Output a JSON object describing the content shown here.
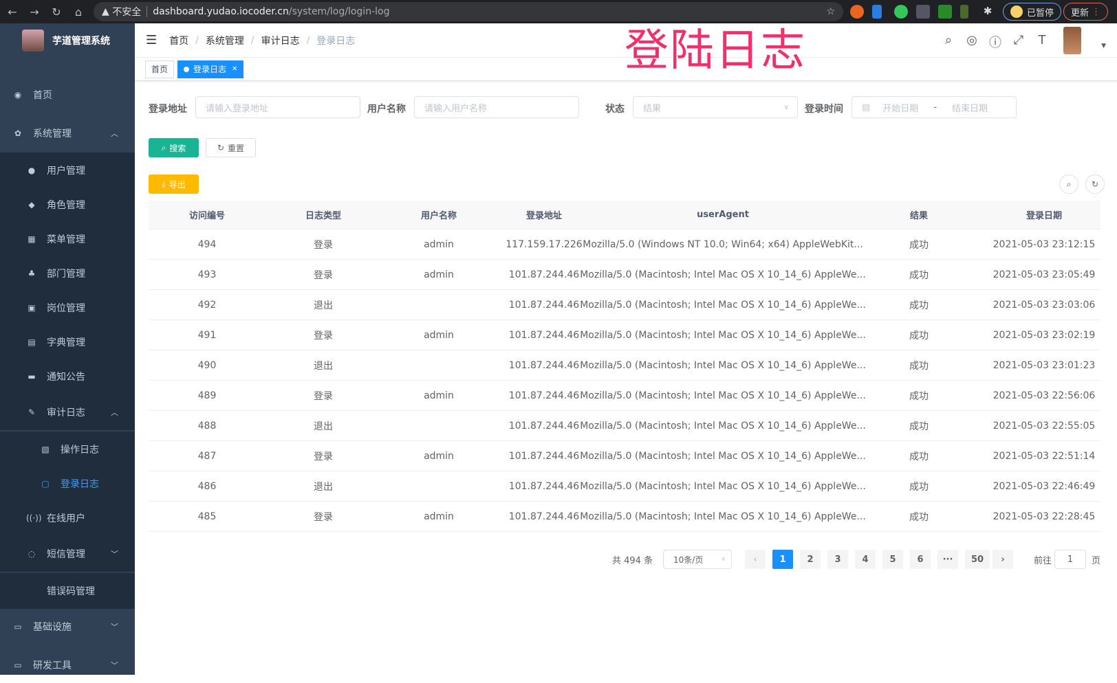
{
  "browser": {
    "security": "不安全",
    "host": "dashboard.yudao.iocoder.cn",
    "path": "/system/log/login-log",
    "paused_label": "已暂停",
    "update_label": "更新"
  },
  "overlay_title": "登陆日志",
  "sidebar": {
    "app_title": "芋道管理系统",
    "items": [
      {
        "label": "首页",
        "icon": "dashboard-icon",
        "level": 0
      },
      {
        "label": "系统管理",
        "icon": "gear-icon",
        "level": 0,
        "expanded": true
      },
      {
        "label": "用户管理",
        "icon": "user-icon",
        "level": 1
      },
      {
        "label": "角色管理",
        "icon": "peoples-icon",
        "level": 1
      },
      {
        "label": "菜单管理",
        "icon": "tree-table-icon",
        "level": 1
      },
      {
        "label": "部门管理",
        "icon": "tree-icon",
        "level": 1
      },
      {
        "label": "岗位管理",
        "icon": "post-icon",
        "level": 1
      },
      {
        "label": "字典管理",
        "icon": "dict-icon",
        "level": 1
      },
      {
        "label": "通知公告",
        "icon": "message-icon",
        "level": 1
      },
      {
        "label": "审计日志",
        "icon": "log-icon",
        "level": 1,
        "expanded": true
      },
      {
        "label": "操作日志",
        "icon": "form-icon",
        "level": 2
      },
      {
        "label": "登录日志",
        "icon": "logininfor-icon",
        "level": 2,
        "active": true
      },
      {
        "label": "在线用户",
        "icon": "online-icon",
        "level": 1
      },
      {
        "label": "短信管理",
        "icon": "validCode-icon",
        "level": 1,
        "collapsed": true
      },
      {
        "label": "错误码管理",
        "icon": "code-icon",
        "level": 1
      },
      {
        "label": "基础设施",
        "icon": "monitor-icon",
        "level": 0,
        "collapsed": true
      },
      {
        "label": "研发工具",
        "icon": "tool-icon",
        "level": 0,
        "collapsed": true
      }
    ]
  },
  "breadcrumb": [
    "首页",
    "系统管理",
    "审计日志",
    "登录日志"
  ],
  "tags": [
    {
      "label": "首页"
    },
    {
      "label": "登录日志",
      "active": true
    }
  ],
  "filters": {
    "address_label": "登录地址",
    "address_placeholder": "请输入登录地址",
    "username_label": "用户名称",
    "username_placeholder": "请输入用户名称",
    "status_label": "状态",
    "status_placeholder": "结果",
    "time_label": "登录时间",
    "start_placeholder": "开始日期",
    "range_sep": "-",
    "end_placeholder": "结束日期"
  },
  "buttons": {
    "search": "搜索",
    "reset": "重置",
    "export": "导出"
  },
  "colors": {
    "sidebar": "#304156",
    "submenu": "#1f2d3d",
    "primary": "#1890ff",
    "search_btn": "#1ab394",
    "export_btn": "#ffba00",
    "active_menu": "#409eff",
    "overlay": "#f0306a"
  },
  "table": {
    "columns": [
      "访问编号",
      "日志类型",
      "用户名称",
      "登录地址",
      "userAgent",
      "结果",
      "登录日期"
    ],
    "rows": [
      [
        "494",
        "登录",
        "admin",
        "117.159.17.226",
        "Mozilla/5.0 (Windows NT 10.0; Win64; x64) AppleWebKit...",
        "成功",
        "2021-05-03 23:12:15"
      ],
      [
        "493",
        "登录",
        "admin",
        "101.87.244.46",
        "Mozilla/5.0 (Macintosh; Intel Mac OS X 10_14_6) AppleWe...",
        "成功",
        "2021-05-03 23:05:49"
      ],
      [
        "492",
        "退出",
        "",
        "101.87.244.46",
        "Mozilla/5.0 (Macintosh; Intel Mac OS X 10_14_6) AppleWe...",
        "成功",
        "2021-05-03 23:03:06"
      ],
      [
        "491",
        "登录",
        "admin",
        "101.87.244.46",
        "Mozilla/5.0 (Macintosh; Intel Mac OS X 10_14_6) AppleWe...",
        "成功",
        "2021-05-03 23:02:19"
      ],
      [
        "490",
        "退出",
        "",
        "101.87.244.46",
        "Mozilla/5.0 (Macintosh; Intel Mac OS X 10_14_6) AppleWe...",
        "成功",
        "2021-05-03 23:01:23"
      ],
      [
        "489",
        "登录",
        "admin",
        "101.87.244.46",
        "Mozilla/5.0 (Macintosh; Intel Mac OS X 10_14_6) AppleWe...",
        "成功",
        "2021-05-03 22:56:06"
      ],
      [
        "488",
        "退出",
        "",
        "101.87.244.46",
        "Mozilla/5.0 (Macintosh; Intel Mac OS X 10_14_6) AppleWe...",
        "成功",
        "2021-05-03 22:55:05"
      ],
      [
        "487",
        "登录",
        "admin",
        "101.87.244.46",
        "Mozilla/5.0 (Macintosh; Intel Mac OS X 10_14_6) AppleWe...",
        "成功",
        "2021-05-03 22:51:14"
      ],
      [
        "486",
        "退出",
        "",
        "101.87.244.46",
        "Mozilla/5.0 (Macintosh; Intel Mac OS X 10_14_6) AppleWe...",
        "成功",
        "2021-05-03 22:46:49"
      ],
      [
        "485",
        "登录",
        "admin",
        "101.87.244.46",
        "Mozilla/5.0 (Macintosh; Intel Mac OS X 10_14_6) AppleWe...",
        "成功",
        "2021-05-03 22:28:45"
      ]
    ]
  },
  "pagination": {
    "total": "共 494 条",
    "page_size": "10条/页",
    "pages": [
      "1",
      "2",
      "3",
      "4",
      "5",
      "6",
      "···",
      "50"
    ],
    "current": "1",
    "goto_label": "前往",
    "goto_value": "1",
    "page_unit": "页"
  }
}
